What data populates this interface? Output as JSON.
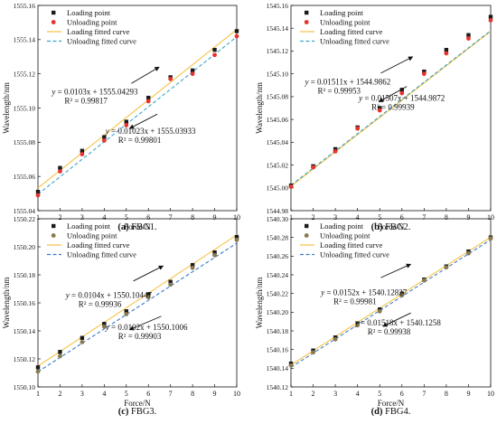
{
  "chart_data": [
    {
      "type": "scatter",
      "caption_letter": "(a)",
      "caption_name": "FBG1.",
      "xlabel": "Force/N",
      "ylabel": "Wavelength/nm",
      "xlim": [
        1,
        10
      ],
      "ylim": [
        1555.04,
        1555.16
      ],
      "x_ticks": [
        1,
        2,
        3,
        4,
        5,
        6,
        7,
        8,
        9,
        10
      ],
      "y_ticks": [
        1555.04,
        1555.06,
        1555.08,
        1555.1,
        1555.12,
        1555.14,
        1555.16
      ],
      "y_tick_labels": [
        "1555.04",
        "1555.06",
        "1555.08",
        "1555.10",
        "1555.12",
        "1555.14",
        "1555.16"
      ],
      "legend": [
        "Loading point",
        "Unloading point",
        "Loading fitted curve",
        "Unloading fitted curve"
      ],
      "legend_position": "top-left",
      "x": [
        1,
        2,
        3,
        4,
        5,
        6,
        7,
        8,
        9,
        10
      ],
      "series": [
        {
          "name": "Loading point",
          "marker": "square",
          "color": "#1a1a1a",
          "values": [
            1555.051,
            1555.065,
            1555.075,
            1555.083,
            1555.092,
            1555.106,
            1555.118,
            1555.122,
            1555.134,
            1555.145
          ]
        },
        {
          "name": "Unloading point",
          "marker": "circle",
          "color": "#e8332e",
          "values": [
            1555.049,
            1555.063,
            1555.073,
            1555.081,
            1555.09,
            1555.104,
            1555.117,
            1555.12,
            1555.131,
            1555.142
          ]
        }
      ],
      "fits": [
        {
          "name": "Loading fitted curve",
          "slope": 0.0103,
          "intercept": 1555.04293,
          "color": "#f5c243",
          "dash": "solid"
        },
        {
          "name": "Unloading fitted curve",
          "slope": 0.01023,
          "intercept": 1555.03933,
          "color": "#3aa6c9",
          "dash": "dashed"
        }
      ],
      "annotations": [
        {
          "equation": "y = 0.0103x + 1555.04293",
          "r2": "R² = 0.99817",
          "arrow": "up"
        },
        {
          "equation": "y = 0.01023x + 1555.03933",
          "r2": "R² = 0.99801",
          "arrow": "down"
        }
      ]
    },
    {
      "type": "scatter",
      "caption_letter": "(b)",
      "caption_name": "FBG2.",
      "xlabel": "Force/N",
      "ylabel": "Wavelength/nm",
      "xlim": [
        1,
        10
      ],
      "ylim": [
        1544.98,
        1545.16
      ],
      "x_ticks": [
        1,
        2,
        3,
        4,
        5,
        6,
        7,
        8,
        9,
        10
      ],
      "y_ticks": [
        1544.98,
        1545.0,
        1545.02,
        1545.04,
        1545.06,
        1545.08,
        1545.1,
        1545.12,
        1545.14,
        1545.16
      ],
      "y_tick_labels": [
        "1544.98",
        "1545.00",
        "1545.02",
        "1545.04",
        "1545.06",
        "1545.08",
        "1545.10",
        "1545.12",
        "1545.14",
        "1545.16"
      ],
      "legend": [
        "Loading point",
        "Unloading point",
        "Loading fitted curve",
        "Unloading fitted curve"
      ],
      "legend_position": "top-left",
      "x": [
        1,
        2,
        3,
        4,
        5,
        6,
        7,
        8,
        9,
        10
      ],
      "series": [
        {
          "name": "Loading point",
          "marker": "square",
          "color": "#1a1a1a",
          "values": [
            1545.002,
            1545.019,
            1545.034,
            1545.053,
            1545.07,
            1545.086,
            1545.102,
            1545.121,
            1545.134,
            1545.15
          ]
        },
        {
          "name": "Unloading point",
          "marker": "circle",
          "color": "#e8332e",
          "values": [
            1545.001,
            1545.018,
            1545.032,
            1545.052,
            1545.068,
            1545.083,
            1545.1,
            1545.118,
            1545.131,
            1545.147
          ]
        }
      ],
      "fits": [
        {
          "name": "Loading fitted curve",
          "slope": 0.01511,
          "intercept": 1544.9862,
          "color": "#f5c243",
          "dash": "solid"
        },
        {
          "name": "Unloading fitted curve",
          "slope": 0.01507,
          "intercept": 1544.9872,
          "color": "#3aa6c9",
          "dash": "dashed"
        }
      ],
      "annotations": [
        {
          "equation": "y = 0.01511x + 1544.9862",
          "r2": "R² = 0.99953",
          "arrow": "up"
        },
        {
          "equation": "y = 0.01507x + 1544.9872",
          "r2": "R² = 0.99939",
          "arrow": "down"
        }
      ]
    },
    {
      "type": "scatter",
      "caption_letter": "(c)",
      "caption_name": "FBG3.",
      "xlabel": "Force/N",
      "ylabel": "Wavelength/nm",
      "xlim": [
        1,
        10
      ],
      "ylim": [
        1550.1,
        1550.22
      ],
      "x_ticks": [
        1,
        2,
        3,
        4,
        5,
        6,
        7,
        8,
        9,
        10
      ],
      "y_ticks": [
        1550.1,
        1550.12,
        1550.14,
        1550.16,
        1550.18,
        1550.2,
        1550.22
      ],
      "y_tick_labels": [
        "1550.10",
        "1550.12",
        "1550.14",
        "1550.16",
        "1550.18",
        "1550.20",
        "1550.22"
      ],
      "legend": [
        "Loading point",
        "Unloading point",
        "Loading fitted curve",
        "Unloading fitted curve"
      ],
      "legend_position": "top-left",
      "x": [
        1,
        2,
        3,
        4,
        5,
        6,
        7,
        8,
        9,
        10
      ],
      "series": [
        {
          "name": "Loading point",
          "marker": "square",
          "color": "#1a1a1a",
          "values": [
            1550.114,
            1550.125,
            1550.135,
            1550.145,
            1550.154,
            1550.166,
            1550.175,
            1550.187,
            1550.196,
            1550.207
          ]
        },
        {
          "name": "Unloading point",
          "marker": "circle",
          "color": "#8a7a4e",
          "values": [
            1550.111,
            1550.122,
            1550.132,
            1550.143,
            1550.152,
            1550.164,
            1550.173,
            1550.185,
            1550.194,
            1550.205
          ]
        }
      ],
      "fits": [
        {
          "name": "Loading fitted curve",
          "slope": 0.0104,
          "intercept": 1550.10447,
          "color": "#f5c243",
          "dash": "solid"
        },
        {
          "name": "Unloading fitted curve",
          "slope": 0.0102,
          "intercept": 1550.1006,
          "color": "#3a7bc9",
          "dash": "dashed"
        }
      ],
      "annotations": [
        {
          "equation": "y = 0.0104x + 1550.10447",
          "r2": "R² = 0.99936",
          "arrow": "up"
        },
        {
          "equation": "y = 0.0102x + 1550.1006",
          "r2": "R² = 0.99903",
          "arrow": "down"
        }
      ]
    },
    {
      "type": "scatter",
      "caption_letter": "(d)",
      "caption_name": "FBG4.",
      "xlabel": "Force/N",
      "ylabel": "Wavelength/nm",
      "xlim": [
        1,
        10
      ],
      "ylim": [
        1540.12,
        1540.3
      ],
      "x_ticks": [
        1,
        2,
        3,
        4,
        5,
        6,
        7,
        8,
        9,
        10
      ],
      "y_ticks": [
        1540.12,
        1540.14,
        1540.16,
        1540.18,
        1540.2,
        1540.22,
        1540.24,
        1540.26,
        1540.28,
        1540.3
      ],
      "y_tick_labels": [
        "1540.12",
        "1540.14",
        "1540.16",
        "1540.18",
        "1540.20",
        "1540.22",
        "1540.24",
        "1540.26",
        "1540.28",
        "1540.30"
      ],
      "legend": [
        "Loading point",
        "Unloading point",
        "Loading fitted curve",
        "Unloading fitted curve"
      ],
      "legend_position": "top-left",
      "x": [
        1,
        2,
        3,
        4,
        5,
        6,
        7,
        8,
        9,
        10
      ],
      "series": [
        {
          "name": "Loading point",
          "marker": "square",
          "color": "#1a1a1a",
          "values": [
            1540.145,
            1540.159,
            1540.173,
            1540.188,
            1540.203,
            1540.22,
            1540.235,
            1540.249,
            1540.265,
            1540.28
          ]
        },
        {
          "name": "Unloading point",
          "marker": "circle",
          "color": "#8a7a4e",
          "values": [
            1540.143,
            1540.157,
            1540.171,
            1540.186,
            1540.201,
            1540.218,
            1540.234,
            1540.248,
            1540.263,
            1540.279
          ]
        }
      ],
      "fits": [
        {
          "name": "Loading fitted curve",
          "slope": 0.0152,
          "intercept": 1540.12827,
          "color": "#f5c243",
          "dash": "solid"
        },
        {
          "name": "Unloading fitted curve",
          "slope": 0.01518,
          "intercept": 1540.1258,
          "color": "#3a7bc9",
          "dash": "dashed"
        }
      ],
      "annotations": [
        {
          "equation": "y = 0.0152x + 1540.12827",
          "r2": "R² = 0.99981",
          "arrow": "up"
        },
        {
          "equation": "y = 0.01518x + 1540.1258",
          "r2": "R² = 0.99938",
          "arrow": "down"
        }
      ]
    }
  ]
}
